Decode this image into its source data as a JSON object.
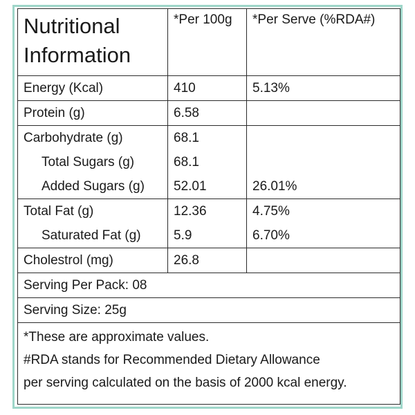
{
  "header": {
    "title_line1": "Nutritional",
    "title_line2": "Information",
    "col_per100": "*Per 100g",
    "col_perserve": "*Per Serve (%RDA#)"
  },
  "rows": {
    "energy": {
      "label": "Energy (Kcal)",
      "per100": "410",
      "perserve": "5.13%"
    },
    "protein": {
      "label": "Protein (g)",
      "per100": "6.58",
      "perserve": ""
    },
    "carbohydrate": {
      "label": "Carbohydrate (g)",
      "per100": "68.1",
      "perserve": ""
    },
    "total_sugars": {
      "label": "Total Sugars (g)",
      "per100": "68.1",
      "perserve": ""
    },
    "added_sugars": {
      "label": "Added Sugars (g)",
      "per100": "52.01",
      "perserve": "26.01%"
    },
    "total_fat": {
      "label": "Total Fat (g)",
      "per100": "12.36",
      "perserve": "4.75%"
    },
    "saturated_fat": {
      "label": "Saturated Fat (g)",
      "per100": "5.9",
      "perserve": "6.70%"
    },
    "cholestrol": {
      "label": "Cholestrol (mg)",
      "per100": "26.8",
      "perserve": ""
    }
  },
  "serving_per_pack": "Serving Per Pack: 08",
  "serving_size": "Serving Size: 25g",
  "notes": {
    "line1": "*These are approximate values.",
    "line2": "#RDA stands for Recommended Dietary Allowance",
    "line3": "per serving calculated on the basis of 2000 kcal energy."
  },
  "colors": {
    "border_accent": "#9ed6c9",
    "grid": "#2b2b2b",
    "text": "#1a1a1a"
  }
}
